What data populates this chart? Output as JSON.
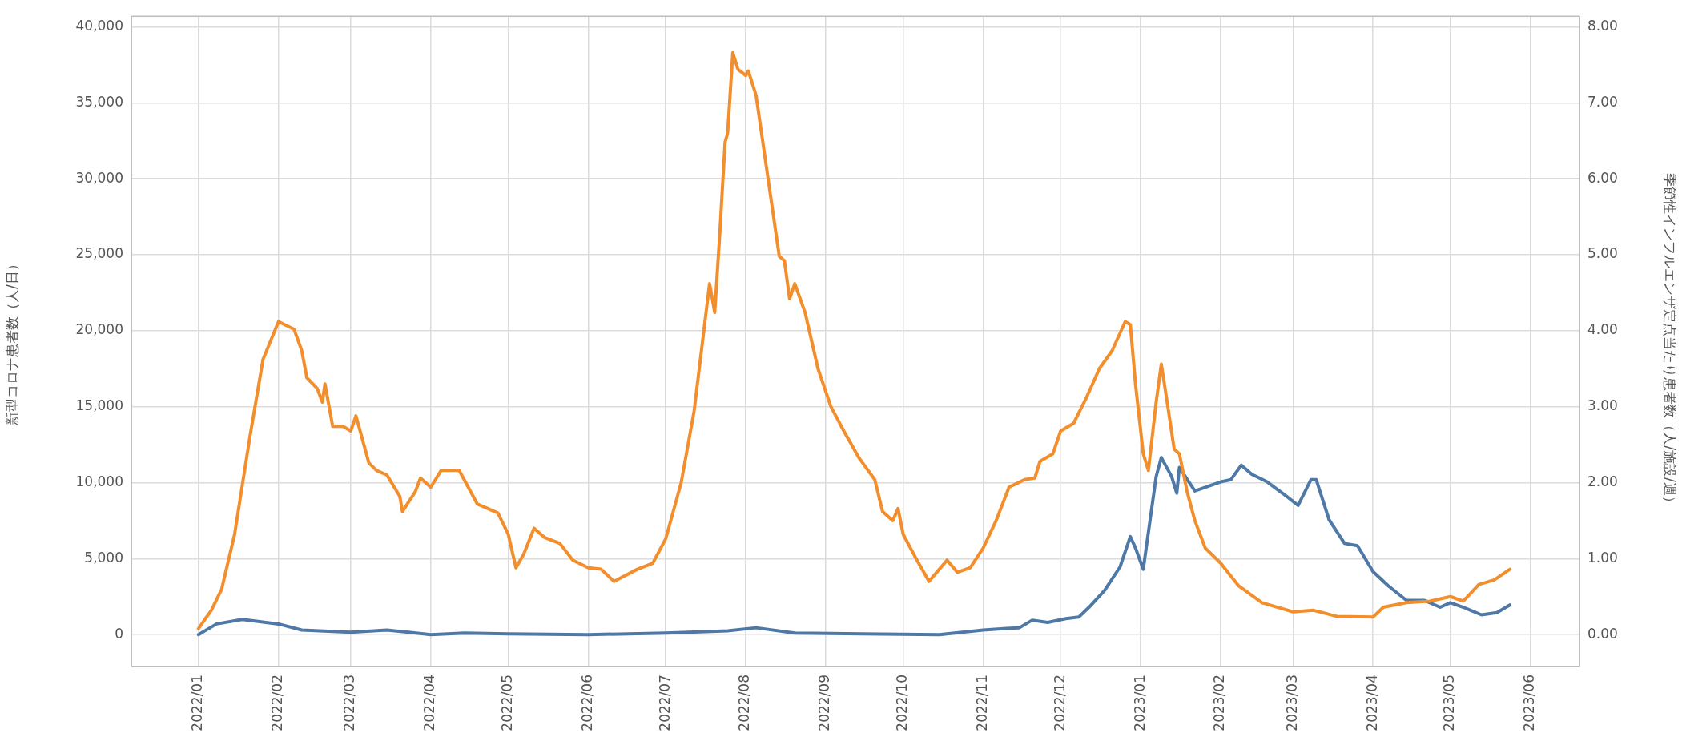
{
  "chart_data": {
    "type": "line",
    "ylabel": "新型コロナ患者数（人/日）",
    "y2label": "季節性インフルエンザ定点当たり患者数（人/施設/週）",
    "xlim": [
      "2021-12-06",
      "2023-06-20"
    ],
    "xticks": [
      {
        "value": "2022-01-01",
        "label": "2022/01"
      },
      {
        "value": "2022-02-01",
        "label": "2022/02"
      },
      {
        "value": "2022-03-01",
        "label": "2022/03"
      },
      {
        "value": "2022-04-01",
        "label": "2022/04"
      },
      {
        "value": "2022-05-01",
        "label": "2022/05"
      },
      {
        "value": "2022-06-01",
        "label": "2022/06"
      },
      {
        "value": "2022-07-01",
        "label": "2022/07"
      },
      {
        "value": "2022-08-01",
        "label": "2022/08"
      },
      {
        "value": "2022-09-01",
        "label": "2022/09"
      },
      {
        "value": "2022-10-01",
        "label": "2022/10"
      },
      {
        "value": "2022-11-01",
        "label": "2022/11"
      },
      {
        "value": "2022-12-01",
        "label": "2022/12"
      },
      {
        "value": "2023-01-01",
        "label": "2023/01"
      },
      {
        "value": "2023-02-01",
        "label": "2023/02"
      },
      {
        "value": "2023-03-01",
        "label": "2023/03"
      },
      {
        "value": "2023-04-01",
        "label": "2023/04"
      },
      {
        "value": "2023-05-01",
        "label": "2023/05"
      },
      {
        "value": "2023-06-01",
        "label": "2023/06"
      }
    ],
    "ylim": [
      -2100,
      40700
    ],
    "yticks": [
      {
        "value": 0,
        "label": "0"
      },
      {
        "value": 5000,
        "label": "5,000"
      },
      {
        "value": 10000,
        "label": "10,000"
      },
      {
        "value": 15000,
        "label": "15,000"
      },
      {
        "value": 20000,
        "label": "20,000"
      },
      {
        "value": 25000,
        "label": "25,000"
      },
      {
        "value": 30000,
        "label": "30,000"
      },
      {
        "value": 35000,
        "label": "35,000"
      },
      {
        "value": 40000,
        "label": "40,000"
      }
    ],
    "y2lim": [
      -0.42,
      8.14
    ],
    "y2ticks": [
      {
        "value": 0,
        "label": "0.00"
      },
      {
        "value": 1,
        "label": "1.00"
      },
      {
        "value": 2,
        "label": "2.00"
      },
      {
        "value": 3,
        "label": "3.00"
      },
      {
        "value": 4,
        "label": "4.00"
      },
      {
        "value": 5,
        "label": "5.00"
      },
      {
        "value": 6,
        "label": "6.00"
      },
      {
        "value": 7,
        "label": "7.00"
      },
      {
        "value": 8,
        "label": "8.00"
      }
    ],
    "grid": true,
    "legend": false,
    "marker": "none",
    "line_style": "solid",
    "series": [
      {
        "color": "#f28e2b",
        "axis": "y",
        "x": [
          "2022-01-01",
          "2022-01-06",
          "2022-01-10",
          "2022-01-15",
          "2022-01-21",
          "2022-01-26",
          "2022-02-01",
          "2022-02-07",
          "2022-02-10",
          "2022-02-12",
          "2022-02-16",
          "2022-02-18",
          "2022-02-19",
          "2022-02-22",
          "2022-02-26",
          "2022-03-01",
          "2022-03-03",
          "2022-03-08",
          "2022-03-11",
          "2022-03-15",
          "2022-03-20",
          "2022-03-21",
          "2022-03-26",
          "2022-03-28",
          "2022-04-01",
          "2022-04-05",
          "2022-04-12",
          "2022-04-19",
          "2022-04-27",
          "2022-05-01",
          "2022-05-04",
          "2022-05-07",
          "2022-05-11",
          "2022-05-15",
          "2022-05-21",
          "2022-05-26",
          "2022-06-01",
          "2022-06-06",
          "2022-06-11",
          "2022-06-20",
          "2022-06-26",
          "2022-07-01",
          "2022-07-07",
          "2022-07-12",
          "2022-07-18",
          "2022-07-20",
          "2022-07-22",
          "2022-07-24",
          "2022-07-25",
          "2022-07-27",
          "2022-07-29",
          "2022-08-01",
          "2022-08-02",
          "2022-08-05",
          "2022-08-10",
          "2022-08-14",
          "2022-08-16",
          "2022-08-18",
          "2022-08-20",
          "2022-08-24",
          "2022-08-29",
          "2022-09-03",
          "2022-09-08",
          "2022-09-14",
          "2022-09-20",
          "2022-09-23",
          "2022-09-27",
          "2022-09-29",
          "2022-10-01",
          "2022-10-06",
          "2022-10-11",
          "2022-10-14",
          "2022-10-18",
          "2022-10-22",
          "2022-10-27",
          "2022-11-01",
          "2022-11-06",
          "2022-11-11",
          "2022-11-17",
          "2022-11-21",
          "2022-11-23",
          "2022-11-28",
          "2022-12-01",
          "2022-12-06",
          "2022-12-11",
          "2022-12-16",
          "2022-12-21",
          "2022-12-26",
          "2022-12-28",
          "2022-12-30",
          "2023-01-02",
          "2023-01-04",
          "2023-01-07",
          "2023-01-09",
          "2023-01-11",
          "2023-01-14",
          "2023-01-16",
          "2023-01-19",
          "2023-01-22",
          "2023-01-26",
          "2023-02-01",
          "2023-02-08",
          "2023-02-17",
          "2023-03-01",
          "2023-03-09",
          "2023-03-18",
          "2023-04-01",
          "2023-04-05",
          "2023-04-14",
          "2023-04-23",
          "2023-05-01",
          "2023-05-06",
          "2023-05-12",
          "2023-05-18",
          "2023-05-24"
        ],
        "values": [
          400,
          1600,
          3000,
          6600,
          13100,
          18100,
          20600,
          20100,
          18700,
          16900,
          16200,
          15300,
          16500,
          13700,
          13700,
          13400,
          14400,
          11300,
          10800,
          10500,
          9100,
          8100,
          9400,
          10300,
          9700,
          10800,
          10800,
          8600,
          8000,
          6600,
          4400,
          5300,
          7000,
          6400,
          6000,
          4900,
          4400,
          4300,
          3500,
          4300,
          4700,
          6300,
          10000,
          14700,
          23100,
          21200,
          26500,
          32400,
          33000,
          38300,
          37200,
          36800,
          37100,
          35500,
          29600,
          24900,
          24600,
          22100,
          23100,
          21200,
          17500,
          15000,
          13400,
          11600,
          10200,
          8100,
          7500,
          8300,
          6600,
          5000,
          3500,
          4100,
          4900,
          4100,
          4400,
          5700,
          7500,
          9700,
          10200,
          10300,
          11400,
          11900,
          13400,
          13900,
          15600,
          17500,
          18700,
          20600,
          20400,
          16500,
          11900,
          10800,
          15300,
          17800,
          15600,
          12200,
          11900,
          9400,
          7500,
          5700,
          4700,
          3200,
          2100,
          1500,
          1600,
          1200,
          1150,
          1800,
          2100,
          2200,
          2500,
          2200,
          3300,
          3600,
          4300
        ]
      },
      {
        "color": "#4e79a7",
        "axis": "y2",
        "x": [
          "2022-01-01",
          "2022-01-08",
          "2022-01-18",
          "2022-02-01",
          "2022-02-10",
          "2022-03-01",
          "2022-03-15",
          "2022-04-01",
          "2022-04-14",
          "2022-05-01",
          "2022-06-01",
          "2022-07-01",
          "2022-07-25",
          "2022-08-05",
          "2022-08-20",
          "2022-09-15",
          "2022-10-15",
          "2022-11-01",
          "2022-11-10",
          "2022-11-15",
          "2022-11-20",
          "2022-11-26",
          "2022-12-03",
          "2022-12-08",
          "2022-12-12",
          "2022-12-18",
          "2022-12-24",
          "2022-12-28",
          "2022-12-30",
          "2023-01-02",
          "2023-01-07",
          "2023-01-09",
          "2023-01-13",
          "2023-01-15",
          "2023-01-16",
          "2023-01-22",
          "2023-02-01",
          "2023-02-05",
          "2023-02-09",
          "2023-02-13",
          "2023-02-19",
          "2023-02-25",
          "2023-03-03",
          "2023-03-08",
          "2023-03-10",
          "2023-03-15",
          "2023-03-21",
          "2023-03-26",
          "2023-04-01",
          "2023-04-07",
          "2023-04-14",
          "2023-04-21",
          "2023-04-27",
          "2023-05-01",
          "2023-05-06",
          "2023-05-13",
          "2023-05-19",
          "2023-05-24"
        ],
        "values": [
          0,
          0.14,
          0.2,
          0.14,
          0.06,
          0.03,
          0.06,
          0,
          0.02,
          0.01,
          0,
          0.02,
          0.05,
          0.09,
          0.02,
          0.01,
          0,
          0.06,
          0.08,
          0.09,
          0.19,
          0.16,
          0.21,
          0.23,
          0.36,
          0.58,
          0.89,
          1.29,
          1.14,
          0.86,
          2.08,
          2.33,
          2.08,
          1.86,
          2.2,
          1.89,
          2.01,
          2.04,
          2.23,
          2.11,
          2.01,
          1.86,
          1.7,
          2.04,
          2.04,
          1.51,
          1.2,
          1.17,
          0.83,
          0.64,
          0.45,
          0.45,
          0.36,
          0.42,
          0.36,
          0.26,
          0.29,
          0.39
        ]
      }
    ]
  }
}
